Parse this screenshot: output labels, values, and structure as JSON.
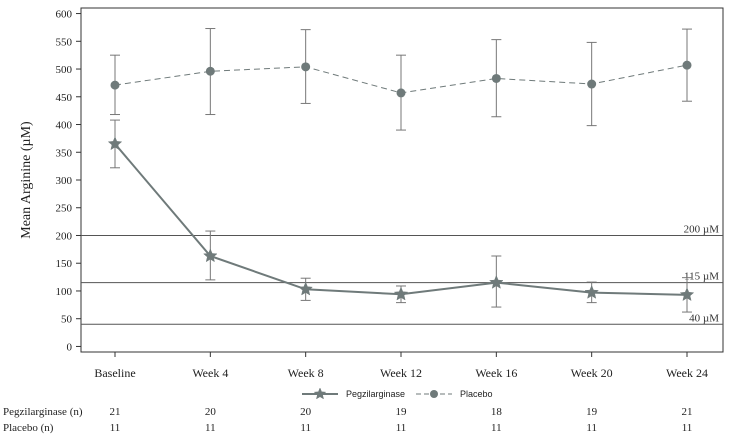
{
  "chart_data": {
    "type": "line",
    "title": "",
    "xlabel": "",
    "ylabel": "Mean Arginine (µM)",
    "ylim": [
      -10,
      610
    ],
    "yticks": [
      0,
      50,
      100,
      150,
      200,
      250,
      300,
      350,
      400,
      450,
      500,
      550,
      600
    ],
    "categories": [
      "Baseline",
      "Week 4",
      "Week 8",
      "Week 12",
      "Week 16",
      "Week 20",
      "Week 24"
    ],
    "series": [
      {
        "name": "Pegzilarginase",
        "marker": "star",
        "line_style": "solid",
        "color": "#6f7a7a",
        "values": [
          365,
          163,
          103,
          94,
          115,
          97,
          93
        ],
        "error_low": [
          322,
          120,
          83,
          79,
          71,
          79,
          62
        ],
        "error_high": [
          408,
          208,
          123,
          109,
          163,
          116,
          124
        ]
      },
      {
        "name": "Placebo",
        "marker": "circle",
        "line_style": "dashed",
        "color": "#6f7a7a",
        "values": [
          471,
          496,
          504,
          457,
          483,
          473,
          507
        ],
        "error_low": [
          418,
          418,
          438,
          390,
          414,
          398,
          442
        ],
        "error_high": [
          525,
          573,
          571,
          525,
          553,
          548,
          572
        ]
      }
    ],
    "reference_lines": [
      {
        "value": 200,
        "label": "200 µM"
      },
      {
        "value": 115,
        "label": "115 µM"
      },
      {
        "value": 40,
        "label": "40 µM"
      }
    ],
    "legend": {
      "position": "bottom",
      "items": [
        "Pegzilarginase",
        "Placebo"
      ]
    },
    "n_table": {
      "rows": [
        {
          "label": "Pegzilarginase (n)",
          "values": [
            "21",
            "20",
            "20",
            "19",
            "18",
            "19",
            "21"
          ]
        },
        {
          "label": "Placebo (n)",
          "values": [
            "11",
            "11",
            "11",
            "11",
            "11",
            "11",
            "11"
          ]
        }
      ]
    },
    "grid": false
  }
}
